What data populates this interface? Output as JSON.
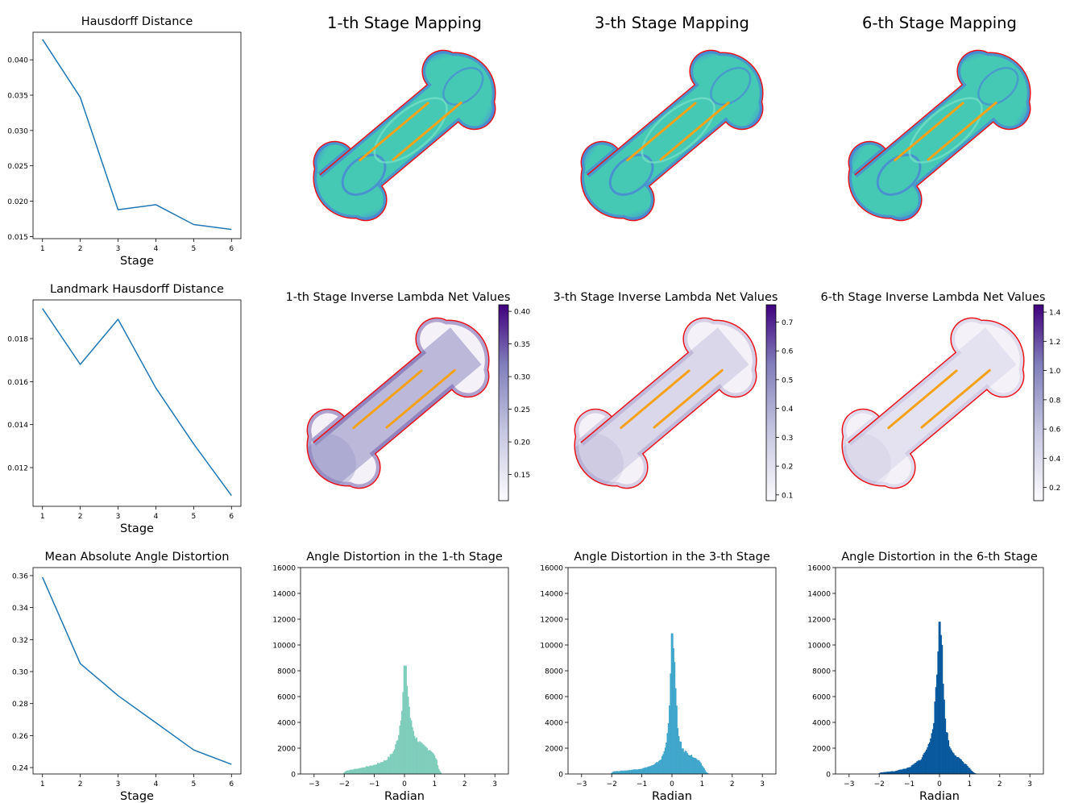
{
  "colors": {
    "line": "#1f77b4",
    "outline": "#e8141c",
    "landmark": "#f5a21a",
    "mesh_base": "#45c9b5",
    "mesh_edge": "#4b6fe0",
    "purple_dark": "#3f007d",
    "hist_stage1": "#7fcdbb",
    "hist_stage3": "#41a6cb",
    "hist_stage6": "#08589e"
  },
  "chart_data": [
    {
      "type": "line",
      "title": "Hausdorff Distance",
      "xlabel": "Stage",
      "ylabel": "",
      "x": [
        1,
        2,
        3,
        4,
        5,
        6
      ],
      "y": [
        0.0429,
        0.0347,
        0.0188,
        0.0195,
        0.0167,
        0.016
      ],
      "xlim": [
        0.75,
        6.25
      ],
      "ylim": [
        0.0147,
        0.0439
      ],
      "xticks": [
        1,
        2,
        3,
        4,
        5,
        6
      ],
      "yticks": [
        0.015,
        0.02,
        0.025,
        0.03,
        0.035,
        0.04
      ],
      "ytick_labels": [
        "0.015",
        "0.020",
        "0.025",
        "0.030",
        "0.035",
        "0.040"
      ]
    },
    {
      "type": "line",
      "title": "Landmark Hausdorff Distance",
      "xlabel": "Stage",
      "ylabel": "",
      "x": [
        1,
        2,
        3,
        4,
        5,
        6
      ],
      "y": [
        0.0194,
        0.0168,
        0.0189,
        0.0157,
        0.0131,
        0.0107
      ],
      "xlim": [
        0.75,
        6.25
      ],
      "ylim": [
        0.0102,
        0.0198
      ],
      "xticks": [
        1,
        2,
        3,
        4,
        5,
        6
      ],
      "yticks": [
        0.012,
        0.014,
        0.016,
        0.018
      ],
      "ytick_labels": [
        "0.012",
        "0.014",
        "0.016",
        "0.018"
      ]
    },
    {
      "type": "line",
      "title": "Mean Absolute Angle Distortion",
      "xlabel": "Stage",
      "ylabel": "",
      "x": [
        1,
        2,
        3,
        4,
        5,
        6
      ],
      "y": [
        0.359,
        0.305,
        0.285,
        0.268,
        0.251,
        0.242
      ],
      "xlim": [
        0.75,
        6.25
      ],
      "ylim": [
        0.236,
        0.365
      ],
      "xticks": [
        1,
        2,
        3,
        4,
        5,
        6
      ],
      "yticks": [
        0.24,
        0.26,
        0.28,
        0.3,
        0.32,
        0.34,
        0.36
      ],
      "ytick_labels": [
        "0.24",
        "0.26",
        "0.28",
        "0.30",
        "0.32",
        "0.34",
        "0.36"
      ]
    },
    {
      "type": "bar",
      "subtype": "histogram",
      "title": "Angle Distortion in the 1-th Stage",
      "xlabel": "Radian",
      "ylabel": "",
      "xlim": [
        -3.45,
        3.45
      ],
      "ylim": [
        0,
        16000
      ],
      "xticks": [
        -3,
        -2,
        -1,
        0,
        1,
        2,
        3
      ],
      "yticks": [
        0,
        2000,
        4000,
        6000,
        8000,
        10000,
        12000,
        14000,
        16000
      ],
      "peak": 8400,
      "color_key": "hist_stage1",
      "profile": [
        [
          -2.05,
          0
        ],
        [
          -1.95,
          250
        ],
        [
          -1.5,
          450
        ],
        [
          -1.0,
          700
        ],
        [
          -0.6,
          1100
        ],
        [
          -0.35,
          1800
        ],
        [
          -0.2,
          3000
        ],
        [
          -0.1,
          4800
        ],
        [
          -0.03,
          7200
        ],
        [
          0.0,
          8400
        ],
        [
          0.05,
          8200
        ],
        [
          0.1,
          6600
        ],
        [
          0.2,
          4200
        ],
        [
          0.35,
          2900
        ],
        [
          0.6,
          2200
        ],
        [
          0.9,
          1800
        ],
        [
          1.05,
          1200
        ],
        [
          1.15,
          300
        ],
        [
          1.25,
          0
        ]
      ]
    },
    {
      "type": "bar",
      "subtype": "histogram",
      "title": "Angle Distortion in the 3-th Stage",
      "xlabel": "Radian",
      "ylabel": "",
      "xlim": [
        -3.45,
        3.45
      ],
      "ylim": [
        0,
        16000
      ],
      "xticks": [
        -3,
        -2,
        -1,
        0,
        1,
        2,
        3
      ],
      "yticks": [
        0,
        2000,
        4000,
        6000,
        8000,
        10000,
        12000,
        14000,
        16000
      ],
      "peak": 10900,
      "color_key": "hist_stage3",
      "profile": [
        [
          -2.05,
          0
        ],
        [
          -1.95,
          200
        ],
        [
          -1.5,
          280
        ],
        [
          -1.0,
          420
        ],
        [
          -0.6,
          700
        ],
        [
          -0.35,
          1200
        ],
        [
          -0.2,
          2200
        ],
        [
          -0.1,
          4800
        ],
        [
          -0.04,
          8000
        ],
        [
          0.0,
          10900
        ],
        [
          0.06,
          10300
        ],
        [
          0.12,
          6500
        ],
        [
          0.2,
          3200
        ],
        [
          0.35,
          1900
        ],
        [
          0.6,
          1500
        ],
        [
          0.9,
          1000
        ],
        [
          1.05,
          500
        ],
        [
          1.15,
          100
        ],
        [
          1.25,
          0
        ]
      ]
    },
    {
      "type": "bar",
      "subtype": "histogram",
      "title": "Angle Distortion in the 6-th Stage",
      "xlabel": "Radian",
      "ylabel": "",
      "xlim": [
        -3.45,
        3.45
      ],
      "ylim": [
        0,
        16000
      ],
      "xticks": [
        -3,
        -2,
        -1,
        0,
        1,
        2,
        3
      ],
      "yticks": [
        0,
        2000,
        4000,
        6000,
        8000,
        10000,
        12000,
        14000,
        16000
      ],
      "peak": 11800,
      "color_key": "hist_stage6",
      "profile": [
        [
          -2.05,
          0
        ],
        [
          -1.95,
          120
        ],
        [
          -1.5,
          220
        ],
        [
          -1.0,
          500
        ],
        [
          -0.6,
          1200
        ],
        [
          -0.35,
          2300
        ],
        [
          -0.2,
          4000
        ],
        [
          -0.1,
          7000
        ],
        [
          -0.04,
          10200
        ],
        [
          0.0,
          11800
        ],
        [
          0.06,
          11200
        ],
        [
          0.12,
          7500
        ],
        [
          0.2,
          3800
        ],
        [
          0.35,
          2000
        ],
        [
          0.6,
          1300
        ],
        [
          0.9,
          700
        ],
        [
          1.05,
          300
        ],
        [
          1.15,
          80
        ],
        [
          1.25,
          0
        ]
      ]
    }
  ],
  "mappings": [
    {
      "title": "1-th Stage Mapping",
      "stage": 1
    },
    {
      "title": "3-th Stage Mapping",
      "stage": 3
    },
    {
      "title": "6-th Stage Mapping",
      "stage": 6
    }
  ],
  "lambda_maps": [
    {
      "title": "1-th Stage Inverse Lambda Net Values",
      "ticks": [
        "0.15",
        "0.20",
        "0.25",
        "0.30",
        "0.35",
        "0.40"
      ],
      "tick_values": [
        0.15,
        0.2,
        0.25,
        0.3,
        0.35,
        0.4
      ],
      "range": [
        0.11,
        0.41
      ],
      "intensity": 0.55
    },
    {
      "title": "3-th Stage Inverse Lambda Net Values",
      "ticks": [
        "0.1",
        "0.2",
        "0.3",
        "0.4",
        "0.5",
        "0.6",
        "0.7"
      ],
      "tick_values": [
        0.1,
        0.2,
        0.3,
        0.4,
        0.5,
        0.6,
        0.7
      ],
      "range": [
        0.08,
        0.76
      ],
      "intensity": 0.25
    },
    {
      "title": "6-th Stage Inverse Lambda Net Values",
      "ticks": [
        "0.2",
        "0.4",
        "0.6",
        "0.8",
        "1.0",
        "1.2",
        "1.4"
      ],
      "tick_values": [
        0.2,
        0.4,
        0.6,
        0.8,
        1.0,
        1.2,
        1.4
      ],
      "range": [
        0.11,
        1.45
      ],
      "intensity": 0.15
    }
  ]
}
